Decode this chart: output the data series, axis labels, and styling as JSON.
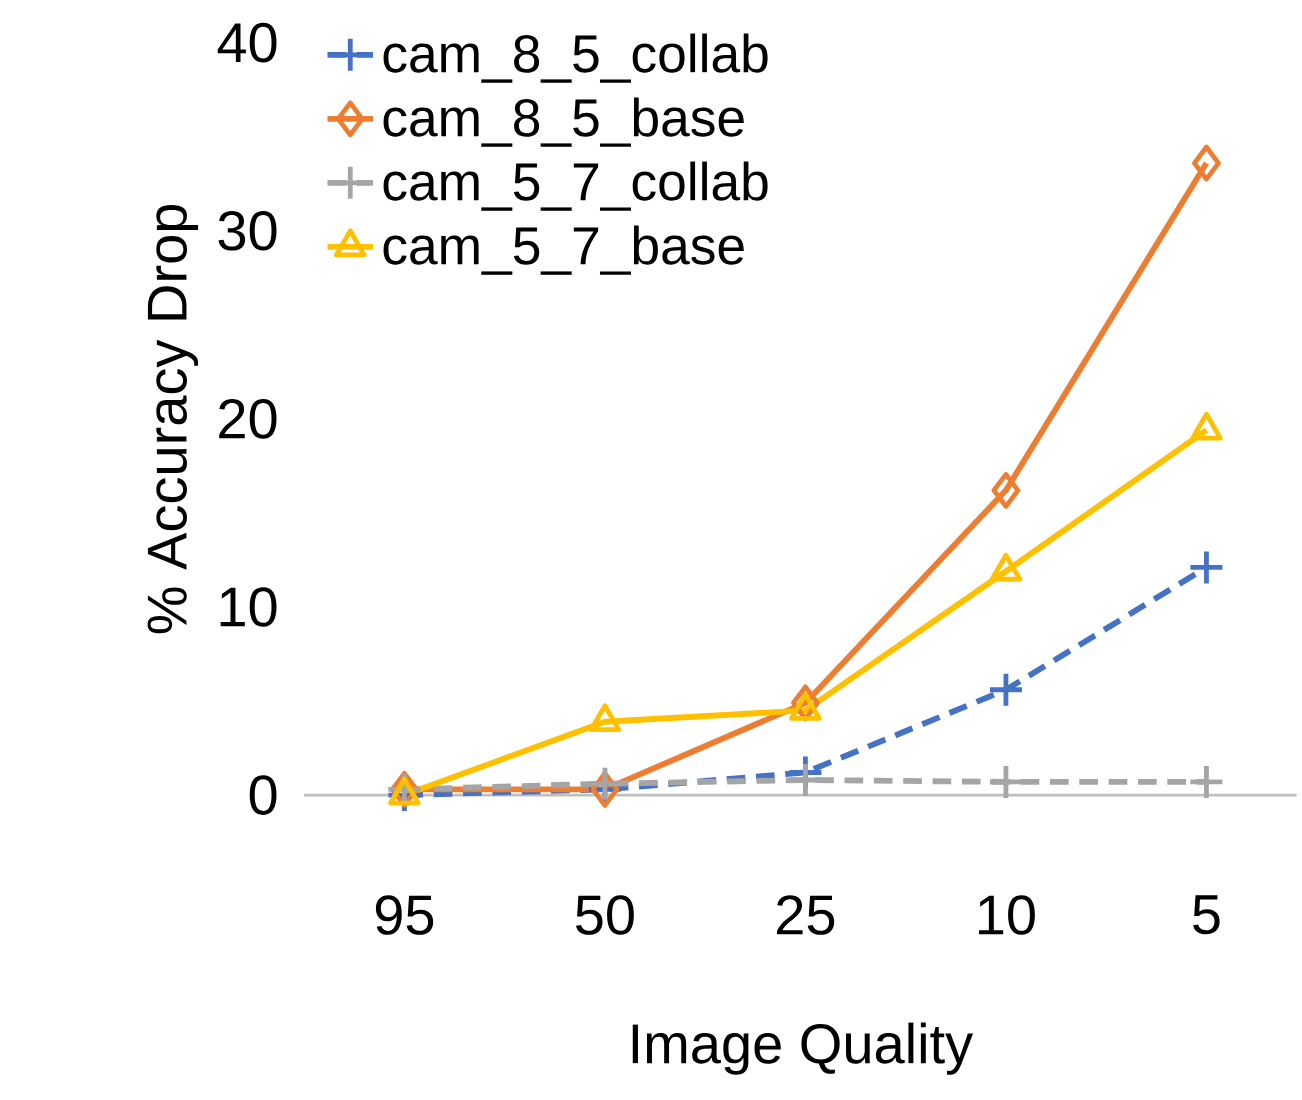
{
  "chart_data": {
    "type": "line",
    "xlabel": "Image Quality",
    "ylabel": "% Accuracy Drop",
    "categories": [
      "95",
      "50",
      "25",
      "10",
      "5"
    ],
    "ylim": [
      0,
      40
    ],
    "yticks": [
      0,
      10,
      20,
      30,
      40
    ],
    "grid": false,
    "legend": "top left",
    "series": [
      {
        "name": "cam_8_5_collab",
        "color": "#4472c4",
        "values": [
          0,
          0.3,
          1.2,
          5.6,
          12.1
        ],
        "marker": "cross",
        "line_style": "dashed"
      },
      {
        "name": "cam_8_5_base",
        "color": "#ed7d31",
        "values": [
          0.3,
          0.3,
          4.9,
          16.2,
          33.6
        ],
        "marker": "diamond",
        "line_style": "solid"
      },
      {
        "name": "cam_5_7_collab",
        "color": "#a5a5a5",
        "values": [
          0.3,
          0.6,
          0.8,
          0.7,
          0.7
        ],
        "marker": "cross",
        "line_style": "dashed"
      },
      {
        "name": "cam_5_7_base",
        "color": "#ffc000",
        "values": [
          0,
          3.9,
          4.5,
          11.9,
          19.4
        ],
        "marker": "triangle",
        "line_style": "solid"
      }
    ]
  }
}
